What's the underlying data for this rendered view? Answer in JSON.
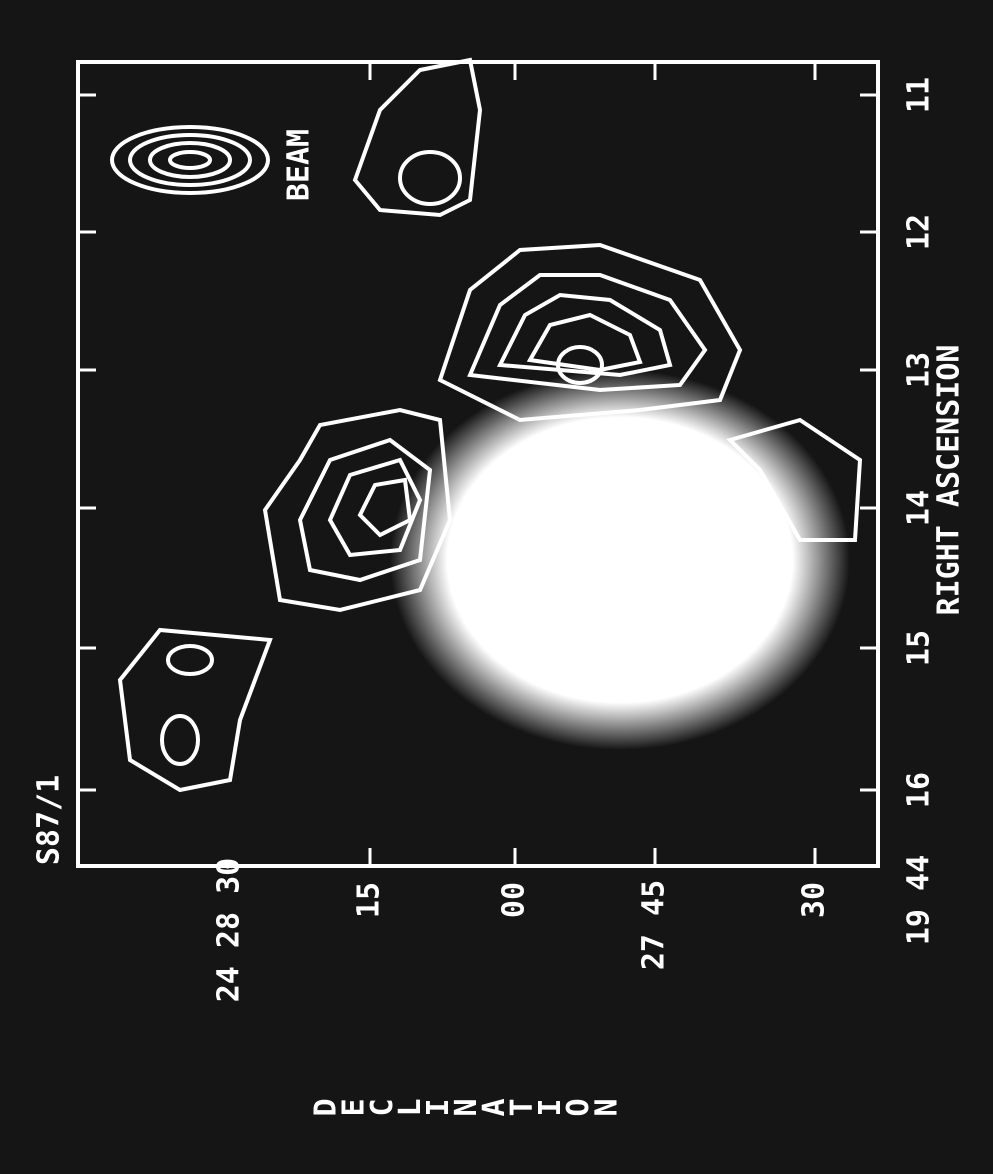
{
  "figure_label": "S87/1",
  "beam_label": "BEAM",
  "x_axis": {
    "title": "RIGHT ASCENSION",
    "prefix": "19 44",
    "ticks": [
      "16",
      "15",
      "14",
      "13",
      "12",
      "11"
    ]
  },
  "y_axis": {
    "title": "DECLINATION",
    "ticks": [
      "24 28 30",
      "15",
      "00",
      "27 45",
      "30"
    ]
  }
}
